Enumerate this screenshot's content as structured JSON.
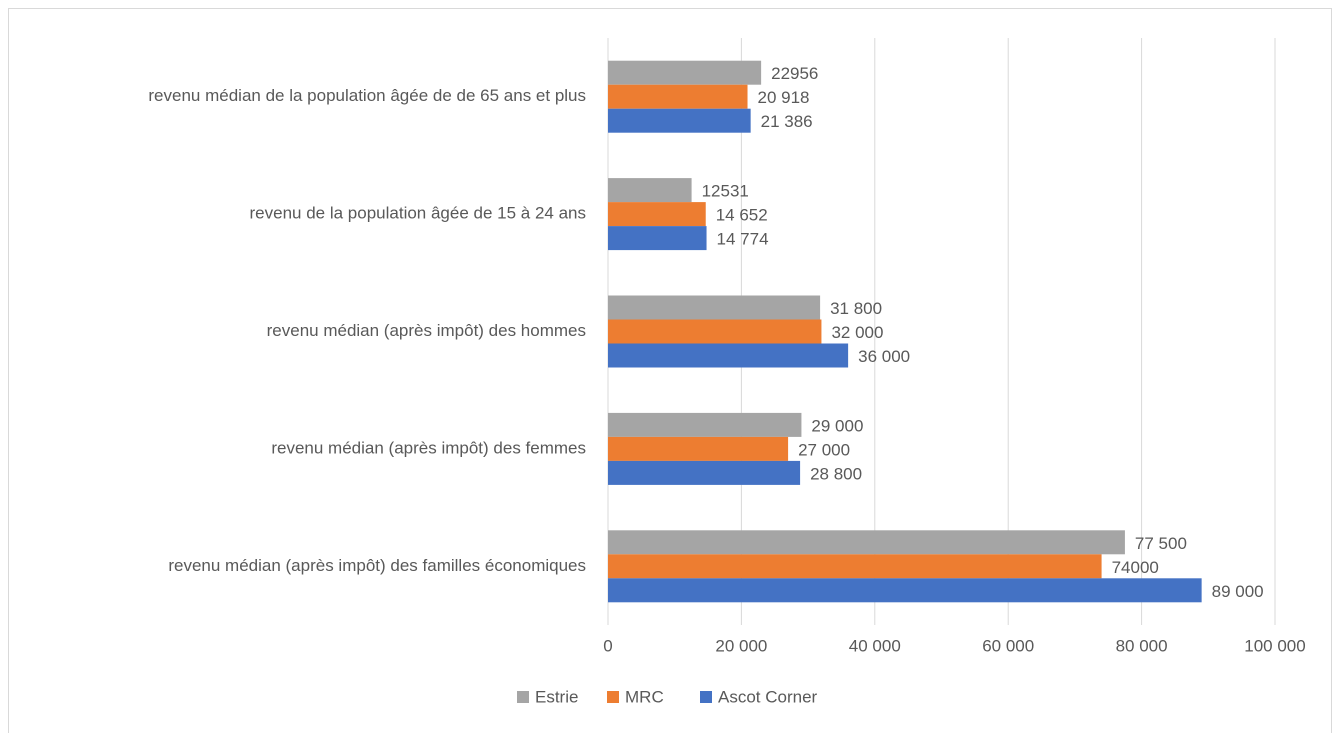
{
  "chart_data": {
    "type": "bar",
    "orientation": "horizontal",
    "categories": [
      "revenu médian de la population âgée de de 65 ans et plus",
      "revenu de la population âgée de 15 à 24 ans",
      "revenu médian (après impôt) des hommes",
      "revenu médian (après impôt) des femmes",
      "revenu médian (après impôt) des familles économiques"
    ],
    "series": [
      {
        "name": "Estrie",
        "color": "#a5a5a5",
        "values": [
          22956,
          12531,
          31800,
          29000,
          77500
        ],
        "value_labels": [
          "22956",
          "12531",
          "31 800",
          "29 000",
          "77 500"
        ]
      },
      {
        "name": "MRC",
        "color": "#ed7d31",
        "values": [
          20918,
          14652,
          32000,
          27000,
          74000
        ],
        "value_labels": [
          "20 918",
          "14 652",
          "32 000",
          "27 000",
          "74000"
        ]
      },
      {
        "name": "Ascot Corner",
        "color": "#4472c4",
        "values": [
          21386,
          14774,
          36000,
          28800,
          89000
        ],
        "value_labels": [
          "21 386",
          "14 774",
          "36 000",
          "28 800",
          "89 000"
        ]
      }
    ],
    "xlim": [
      0,
      100000
    ],
    "xticks": [
      0,
      {
        "value": 20000,
        "label": "20 000"
      },
      {
        "value": 40000,
        "label": "40 000"
      },
      {
        "value": 60000,
        "label": "60 000"
      },
      {
        "value": 80000,
        "label": "80 000"
      },
      {
        "value": 100000,
        "label": "100 000"
      }
    ],
    "grid": true,
    "legend": "bottom"
  }
}
